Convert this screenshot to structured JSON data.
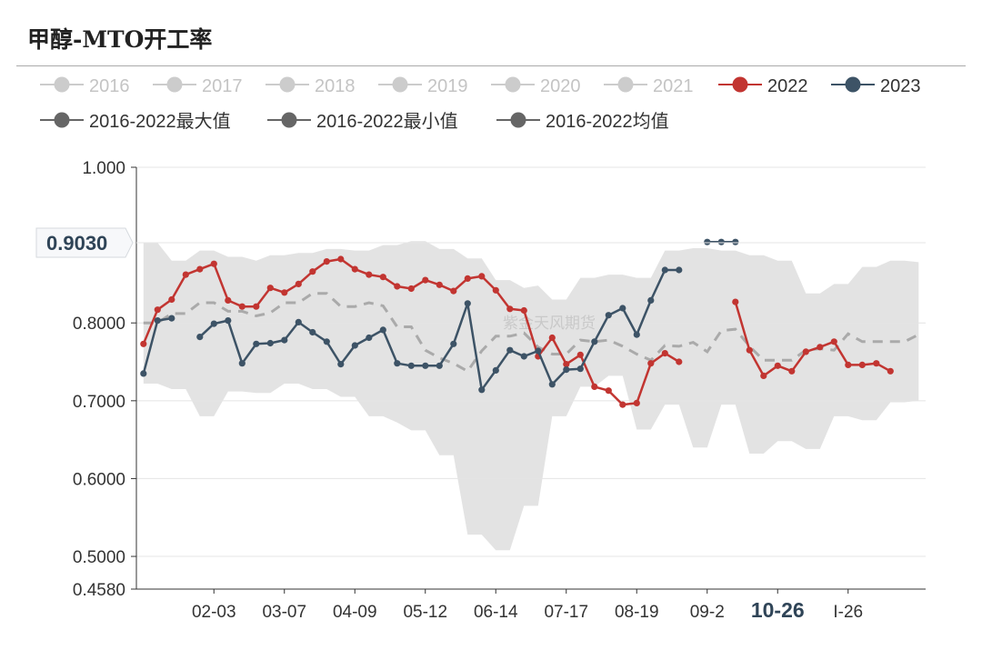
{
  "header": {
    "title": "甲醇-MTO开工率"
  },
  "watermark": "紫金天风期货",
  "cursor_label": "0.9030",
  "colors": {
    "y2022": "#c23531",
    "y2023": "#3d5366",
    "range": "#e3e3e3",
    "mean": "#aaaaaa",
    "inactive": "#cccccc",
    "stat": "#666666"
  },
  "chart_data": {
    "type": "line",
    "title": "甲醇-MTO开工率",
    "ylim": [
      0.458,
      1.0
    ],
    "y_ticks": [
      {
        "value": 1.0,
        "label": "1.000"
      },
      {
        "value": 0.903,
        "label": "0.9030"
      },
      {
        "value": 0.8,
        "label": "0.8000"
      },
      {
        "value": 0.7,
        "label": "0.7000"
      },
      {
        "value": 0.6,
        "label": "0.6000"
      },
      {
        "value": 0.5,
        "label": "0.5000"
      },
      {
        "value": 0.458,
        "label": "0.4580"
      }
    ],
    "x_ticks": [
      {
        "index": 5,
        "label": "02-03"
      },
      {
        "index": 10,
        "label": "03-07"
      },
      {
        "index": 15,
        "label": "04-09"
      },
      {
        "index": 20,
        "label": "05-12"
      },
      {
        "index": 25,
        "label": "06-14"
      },
      {
        "index": 30,
        "label": "07-17"
      },
      {
        "index": 35,
        "label": "08-19"
      },
      {
        "index": 40,
        "label": "09-2"
      },
      {
        "index": 45,
        "label": "10-26",
        "highlight": true
      },
      {
        "index": 50,
        "label": "I-26"
      }
    ],
    "n_points": 56,
    "legend": [
      {
        "name": "2016",
        "active": false
      },
      {
        "name": "2017",
        "active": false
      },
      {
        "name": "2018",
        "active": false
      },
      {
        "name": "2019",
        "active": false
      },
      {
        "name": "2020",
        "active": false
      },
      {
        "name": "2021",
        "active": false
      },
      {
        "name": "2022",
        "active": true
      },
      {
        "name": "2023",
        "active": true
      },
      {
        "name": "2016-2022最大值",
        "active": true
      },
      {
        "name": "2016-2022最小值",
        "active": true
      },
      {
        "name": "2016-2022均值",
        "active": true
      }
    ],
    "series": [
      {
        "name": "2022",
        "values": [
          0.773,
          0.817,
          0.83,
          0.862,
          0.869,
          0.876,
          0.829,
          0.821,
          0.821,
          0.845,
          0.839,
          0.85,
          0.866,
          0.879,
          0.882,
          0.869,
          0.862,
          0.859,
          0.847,
          0.844,
          0.855,
          0.849,
          0.841,
          0.857,
          0.86,
          0.842,
          0.818,
          0.816,
          0.757,
          0.781,
          0.747,
          0.759,
          0.718,
          0.713,
          0.695,
          0.697,
          0.748,
          0.761,
          0.75,
          null,
          null,
          null,
          0.827,
          0.765,
          0.732,
          0.745,
          0.738,
          0.763,
          0.769,
          0.776,
          0.746,
          0.746,
          0.748,
          0.738
        ]
      },
      {
        "name": "2023",
        "values": [
          0.735,
          0.803,
          0.806,
          null,
          0.782,
          0.799,
          0.803,
          0.748,
          0.773,
          0.774,
          0.778,
          0.801,
          0.788,
          0.776,
          0.747,
          0.771,
          0.781,
          0.791,
          0.748,
          0.745,
          0.745,
          0.745,
          0.773,
          0.825,
          0.714,
          0.739,
          0.765,
          0.757,
          0.764,
          0.721,
          0.74,
          0.741,
          0.776,
          0.81,
          0.819,
          0.785,
          0.829,
          0.868,
          0.868,
          null,
          0.904,
          0.904,
          0.904
        ]
      },
      {
        "name": "2016-2022最大值",
        "values": [
          0.903,
          0.903,
          0.88,
          0.88,
          0.893,
          0.893,
          0.885,
          0.885,
          0.88,
          0.887,
          0.887,
          0.89,
          0.89,
          0.895,
          0.895,
          0.893,
          0.893,
          0.9,
          0.9,
          0.905,
          0.905,
          0.895,
          0.895,
          0.883,
          0.883,
          0.855,
          0.855,
          0.845,
          0.848,
          0.83,
          0.83,
          0.858,
          0.858,
          0.862,
          0.862,
          0.858,
          0.858,
          0.893,
          0.893,
          0.896,
          0.896,
          0.893,
          0.893,
          0.887,
          0.887,
          0.88,
          0.88,
          0.838,
          0.838,
          0.85,
          0.85,
          0.872,
          0.872,
          0.88,
          0.88,
          0.878
        ]
      },
      {
        "name": "2016-2022最小值",
        "values": [
          0.722,
          0.722,
          0.715,
          0.715,
          0.68,
          0.68,
          0.712,
          0.712,
          0.71,
          0.71,
          0.722,
          0.722,
          0.715,
          0.715,
          0.705,
          0.705,
          0.68,
          0.68,
          0.672,
          0.662,
          0.662,
          0.63,
          0.63,
          0.528,
          0.528,
          0.508,
          0.508,
          0.565,
          0.565,
          0.68,
          0.68,
          0.718,
          0.718,
          0.732,
          0.732,
          0.663,
          0.663,
          0.695,
          0.695,
          0.64,
          0.64,
          0.695,
          0.695,
          0.632,
          0.632,
          0.648,
          0.648,
          0.638,
          0.638,
          0.68,
          0.68,
          0.675,
          0.675,
          0.698,
          0.698,
          0.7
        ]
      },
      {
        "name": "2016-2022均值",
        "values": [
          0.8,
          0.8,
          0.812,
          0.812,
          0.826,
          0.826,
          0.815,
          0.815,
          0.809,
          0.813,
          0.826,
          0.826,
          0.838,
          0.838,
          0.821,
          0.821,
          0.826,
          0.822,
          0.795,
          0.795,
          0.765,
          0.755,
          0.748,
          0.738,
          0.764,
          0.783,
          0.783,
          0.787,
          0.769,
          0.76,
          0.76,
          0.778,
          0.776,
          0.778,
          0.77,
          0.76,
          0.752,
          0.771,
          0.77,
          0.775,
          0.763,
          0.79,
          0.792,
          0.77,
          0.752,
          0.752,
          0.752,
          0.765,
          0.767,
          0.765,
          0.786,
          0.776,
          0.776,
          0.776,
          0.776,
          0.785
        ]
      }
    ]
  }
}
